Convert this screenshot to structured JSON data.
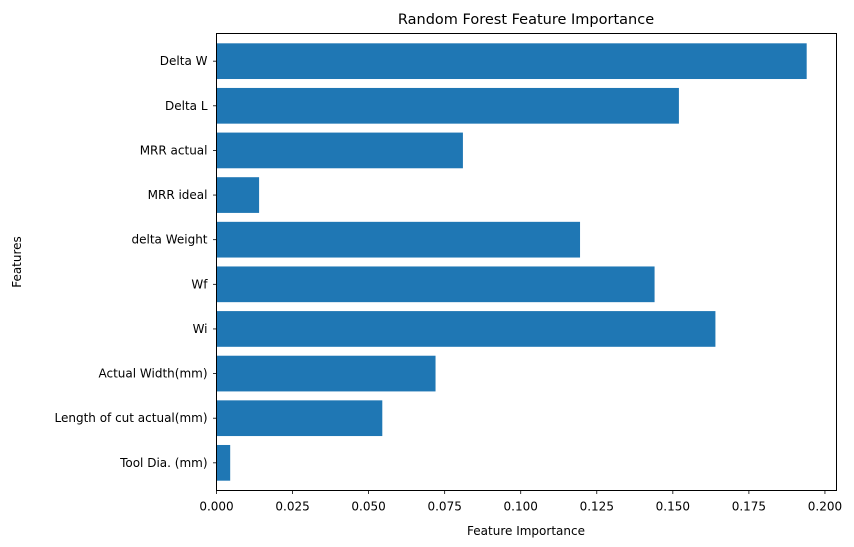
{
  "chart_data": {
    "type": "bar",
    "orientation": "horizontal",
    "title": "Random Forest Feature Importance",
    "xlabel": "Feature Importance",
    "ylabel": "Features",
    "categories": [
      "Tool Dia. (mm)",
      "Length of cut actual(mm)",
      "Actual Width(mm)",
      "Wi",
      "Wf",
      "delta Weight",
      "MRR ideal",
      "MRR actual",
      "Delta L",
      "Delta W"
    ],
    "values": [
      0.0045,
      0.0545,
      0.072,
      0.164,
      0.144,
      0.1195,
      0.014,
      0.081,
      0.152,
      0.194
    ],
    "xlim": [
      0,
      0.2038
    ],
    "xticks": [
      0.0,
      0.025,
      0.05,
      0.075,
      0.1,
      0.125,
      0.15,
      0.175,
      0.2
    ],
    "xtick_labels": [
      "0.000",
      "0.025",
      "0.050",
      "0.075",
      "0.100",
      "0.125",
      "0.150",
      "0.175",
      "0.200"
    ],
    "bar_color": "#1f77b4",
    "grid": false,
    "legend": null
  }
}
